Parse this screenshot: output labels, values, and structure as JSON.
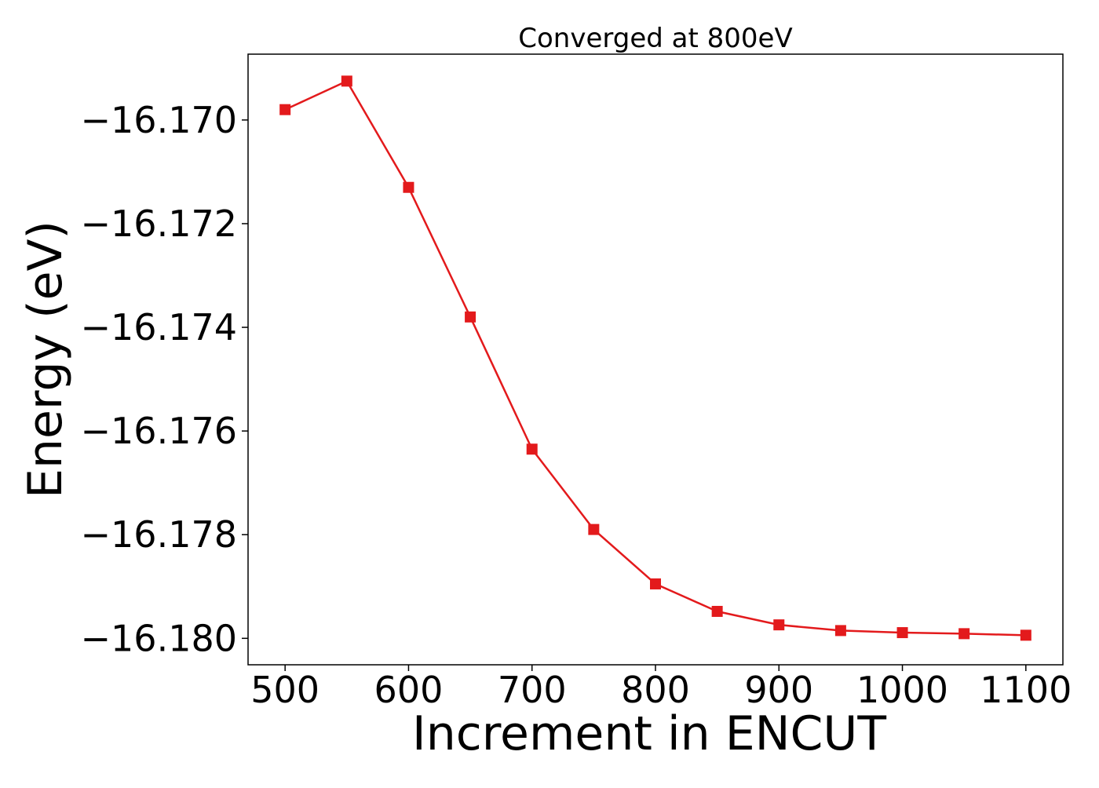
{
  "chart_data": {
    "type": "line",
    "title": "Converged at 800eV",
    "xlabel": "Increment in ENCUT",
    "ylabel": "Energy (eV)",
    "x": [
      500,
      550,
      600,
      650,
      700,
      750,
      800,
      850,
      900,
      950,
      1000,
      1050,
      1100
    ],
    "series": [
      {
        "values": [
          -16.1698,
          -16.16925,
          -16.1713,
          -16.1738,
          -16.17635,
          -16.1779,
          -16.17895,
          -16.17948,
          -16.17974,
          -16.17985,
          -16.17989,
          -16.17991,
          -16.17994
        ],
        "color": "#e31a1c",
        "marker": "square"
      }
    ],
    "xlim": [
      470,
      1130
    ],
    "ylim": [
      -16.18051,
      -16.16873
    ],
    "xticks": [
      500,
      600,
      700,
      800,
      900,
      1000,
      1100
    ],
    "xtick_labels": [
      "500",
      "600",
      "700",
      "800",
      "900",
      "1000",
      "1100"
    ],
    "yticks": [
      -16.17,
      -16.172,
      -16.174,
      -16.176,
      -16.178,
      -16.18
    ],
    "ytick_labels": [
      "−16.170",
      "−16.172",
      "−16.174",
      "−16.176",
      "−16.178",
      "−16.180"
    ],
    "grid": false,
    "legend": false
  }
}
